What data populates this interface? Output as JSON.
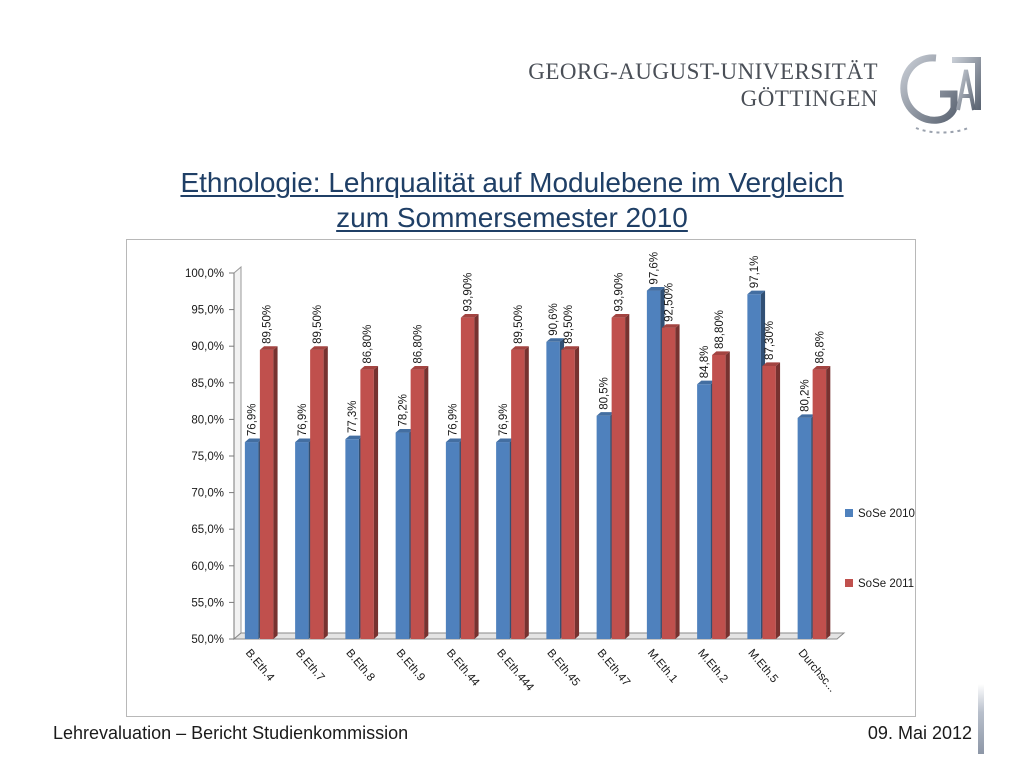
{
  "header": {
    "university_line1": "GEORG-AUGUST-UNIVERSITÄT",
    "university_line2": "GÖTTINGEN"
  },
  "title": {
    "line1": "Ethnologie: Lehrqualität auf Modulebene im Vergleich",
    "line2": "zum Sommersemester 2010"
  },
  "footer": {
    "left": "Lehrevaluation – Bericht Studienkommission",
    "right": "09. Mai 2012"
  },
  "colors": {
    "title": "#1f3f66",
    "sose2010": "#4f81bd",
    "sose2011": "#c0504d"
  },
  "chart_data": {
    "type": "bar",
    "title": "",
    "xlabel": "",
    "ylabel": "",
    "ylim": [
      50,
      100
    ],
    "yticks": [
      "50,0%",
      "55,0%",
      "60,0%",
      "65,0%",
      "70,0%",
      "75,0%",
      "80,0%",
      "85,0%",
      "90,0%",
      "95,0%",
      "100,0%"
    ],
    "categories": [
      "B.Eth.4",
      "B.Eth.7",
      "B.Eth.8",
      "B.Eth.9",
      "B.Eth.44",
      "B.Eth.444",
      "B.Eth.45",
      "B.Eth.47",
      "M.Eth.1",
      "M.Eth.2",
      "M.Eth.5",
      "Durchsc..."
    ],
    "legend_position": "right",
    "grid": false,
    "series": [
      {
        "name": "SoSe 2010",
        "color": "#4f81bd",
        "values": [
          76.9,
          76.9,
          77.3,
          78.2,
          76.9,
          76.9,
          90.6,
          80.5,
          97.6,
          84.8,
          97.1,
          80.2
        ],
        "labels": [
          "76,9%",
          "76,9%",
          "77,3%",
          "78,2%",
          "76,9%",
          "76,9%",
          "90,6%",
          "80,5%",
          "97,6%",
          "84,8%",
          "97,1%",
          "80,2%"
        ]
      },
      {
        "name": "SoSe 2011",
        "color": "#c0504d",
        "values": [
          89.5,
          89.5,
          86.8,
          86.8,
          93.9,
          89.5,
          89.5,
          93.9,
          92.5,
          88.8,
          87.3,
          86.8
        ],
        "labels": [
          "89,50%",
          "89,50%",
          "86,80%",
          "86,80%",
          "93,90%",
          "89,50%",
          "89,50%",
          "93,90%",
          "92,50%",
          "88,80%",
          "87,30%",
          "86,8%"
        ]
      }
    ]
  }
}
